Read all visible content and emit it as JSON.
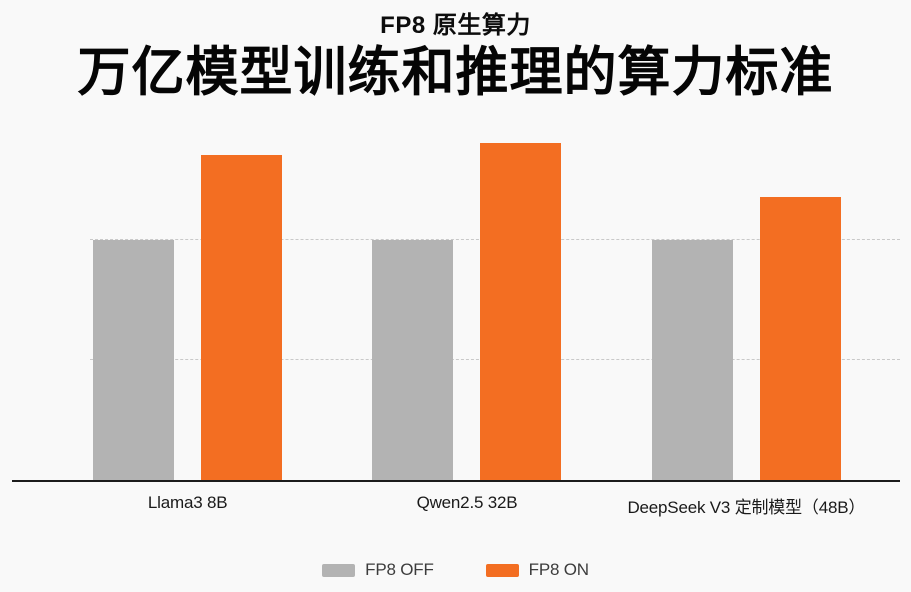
{
  "page": {
    "background": "#f9f9f9"
  },
  "header": {
    "subtitle": "FP8 原生算力",
    "title": "万亿模型训练和推理的算力标准"
  },
  "chart_data": {
    "type": "bar",
    "title": "FP8 原生算力",
    "subtitle_main": "万亿模型训练和推理的算力标准",
    "categories": [
      "Llama3 8B",
      "Qwen2.5 32B",
      "DeepSeek V3 定制模型（48B）"
    ],
    "series": [
      {
        "name": "FP8 OFF",
        "color": "#b3b3b3",
        "values": [
          2.0,
          2.0,
          2.0
        ]
      },
      {
        "name": "FP8 ON",
        "color": "#f36e22",
        "values": [
          2.7,
          2.8,
          2.35
        ]
      }
    ],
    "xlabel": "",
    "ylabel": "",
    "ylim": [
      0,
      3.1
    ],
    "gridlines_y": [
      1,
      2
    ],
    "grid_style": "dashed",
    "y_axis_tick_labels_visible": false,
    "value_unit": "relative (no numeric axis labels shown)",
    "legend_position": "bottom",
    "axis_line_color": "#1c1c1c",
    "gridline_color": "#c9c9c9"
  },
  "legend": {
    "items": [
      {
        "label": "FP8 OFF",
        "color": "#b3b3b3"
      },
      {
        "label": "FP8 ON",
        "color": "#f36e22"
      }
    ]
  }
}
